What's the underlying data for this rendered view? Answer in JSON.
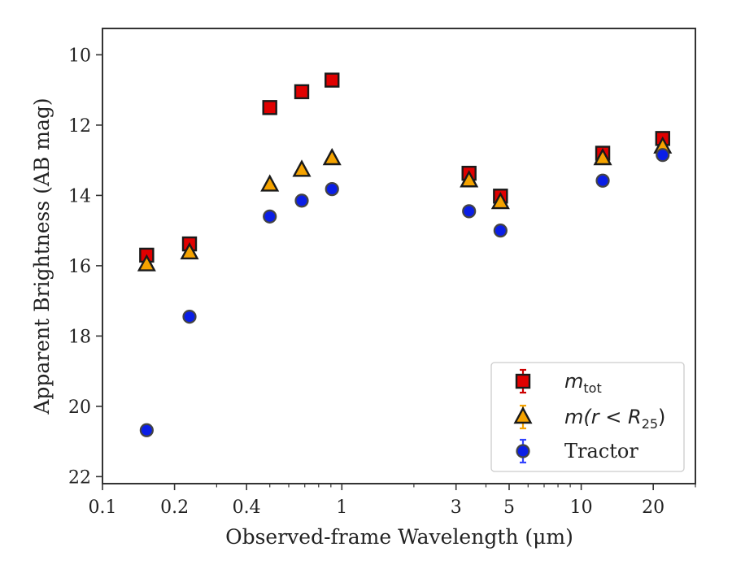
{
  "chart_data": {
    "type": "scatter",
    "xlabel": "Observed-frame Wavelength (μm)",
    "ylabel": "Apparent Brightness (AB mag)",
    "x_scale": "log",
    "xlim": [
      0.1,
      30
    ],
    "ylim": [
      22.2,
      9.25
    ],
    "y_inverted": true,
    "x_ticks": [
      0.1,
      0.2,
      0.4,
      1,
      3,
      5,
      10,
      20
    ],
    "x_tick_labels": [
      "0.1",
      "0.2",
      "0.4",
      "1",
      "3",
      "5",
      "10",
      "20"
    ],
    "y_ticks": [
      10,
      12,
      14,
      16,
      18,
      20,
      22
    ],
    "y_tick_labels": [
      "10",
      "12",
      "14",
      "16",
      "18",
      "20",
      "22"
    ],
    "grid": false,
    "legend_position": "bottom-right",
    "series": [
      {
        "name": "m_tot",
        "label_parts": {
          "main": "m",
          "sub": "tot"
        },
        "marker": "square",
        "color": "#e00000",
        "errorbar_color": "#cc0000",
        "points": [
          {
            "x": 0.153,
            "y": 15.7
          },
          {
            "x": 0.231,
            "y": 15.38
          },
          {
            "x": 0.5,
            "y": 11.5
          },
          {
            "x": 0.68,
            "y": 11.05
          },
          {
            "x": 0.91,
            "y": 10.72
          },
          {
            "x": 3.4,
            "y": 13.37
          },
          {
            "x": 4.6,
            "y": 14.02
          },
          {
            "x": 12.3,
            "y": 12.8
          },
          {
            "x": 21.9,
            "y": 12.38
          }
        ]
      },
      {
        "name": "m(r < R25)",
        "label_parts": {
          "pre": "m(",
          "var": "r",
          "op": " < ",
          "main": "R",
          "sub": "25",
          "post": ")"
        },
        "marker": "triangle",
        "color": "#f5a300",
        "errorbar_color": "#f5a300",
        "points": [
          {
            "x": 0.153,
            "y": 15.97
          },
          {
            "x": 0.231,
            "y": 15.63
          },
          {
            "x": 0.5,
            "y": 13.7
          },
          {
            "x": 0.68,
            "y": 13.28
          },
          {
            "x": 0.91,
            "y": 12.95
          },
          {
            "x": 3.4,
            "y": 13.58
          },
          {
            "x": 4.6,
            "y": 14.2
          },
          {
            "x": 12.3,
            "y": 12.95
          },
          {
            "x": 21.9,
            "y": 12.62
          }
        ]
      },
      {
        "name": "Tractor",
        "marker": "circle",
        "color": "#0a1ee6",
        "errorbar_color": "#3344ff",
        "points": [
          {
            "x": 0.153,
            "y": 20.68
          },
          {
            "x": 0.231,
            "y": 17.45
          },
          {
            "x": 0.5,
            "y": 14.6
          },
          {
            "x": 0.68,
            "y": 14.15
          },
          {
            "x": 0.91,
            "y": 13.82
          },
          {
            "x": 3.4,
            "y": 14.45
          },
          {
            "x": 4.6,
            "y": 15.0
          },
          {
            "x": 12.3,
            "y": 13.58
          },
          {
            "x": 21.9,
            "y": 12.85
          }
        ]
      }
    ]
  }
}
